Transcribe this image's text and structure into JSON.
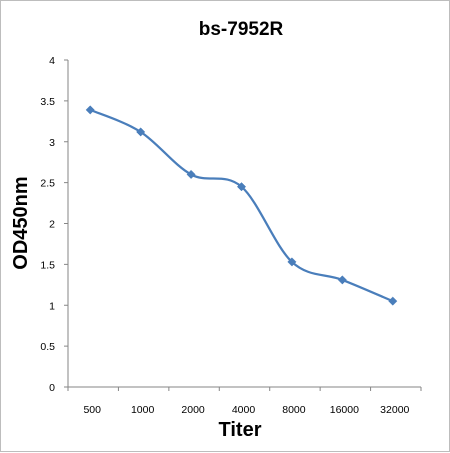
{
  "chart_data": {
    "type": "line",
    "title": "bs-7952R",
    "xlabel": "Titer",
    "ylabel": "OD450nm",
    "categories": [
      "500",
      "1000",
      "2000",
      "4000",
      "8000",
      "16000",
      "32000"
    ],
    "series": [
      {
        "values": [
          3.39,
          3.12,
          2.6,
          2.45,
          1.53,
          1.31,
          1.05
        ],
        "color": "#4a7ebb",
        "marker": "diamond",
        "smooth": true
      }
    ],
    "ylim": [
      0,
      4
    ],
    "yticks": [
      "0",
      "0.5",
      "1",
      "1.5",
      "2",
      "2.5",
      "3",
      "3.5",
      "4"
    ],
    "grid": false,
    "legend": "none"
  }
}
